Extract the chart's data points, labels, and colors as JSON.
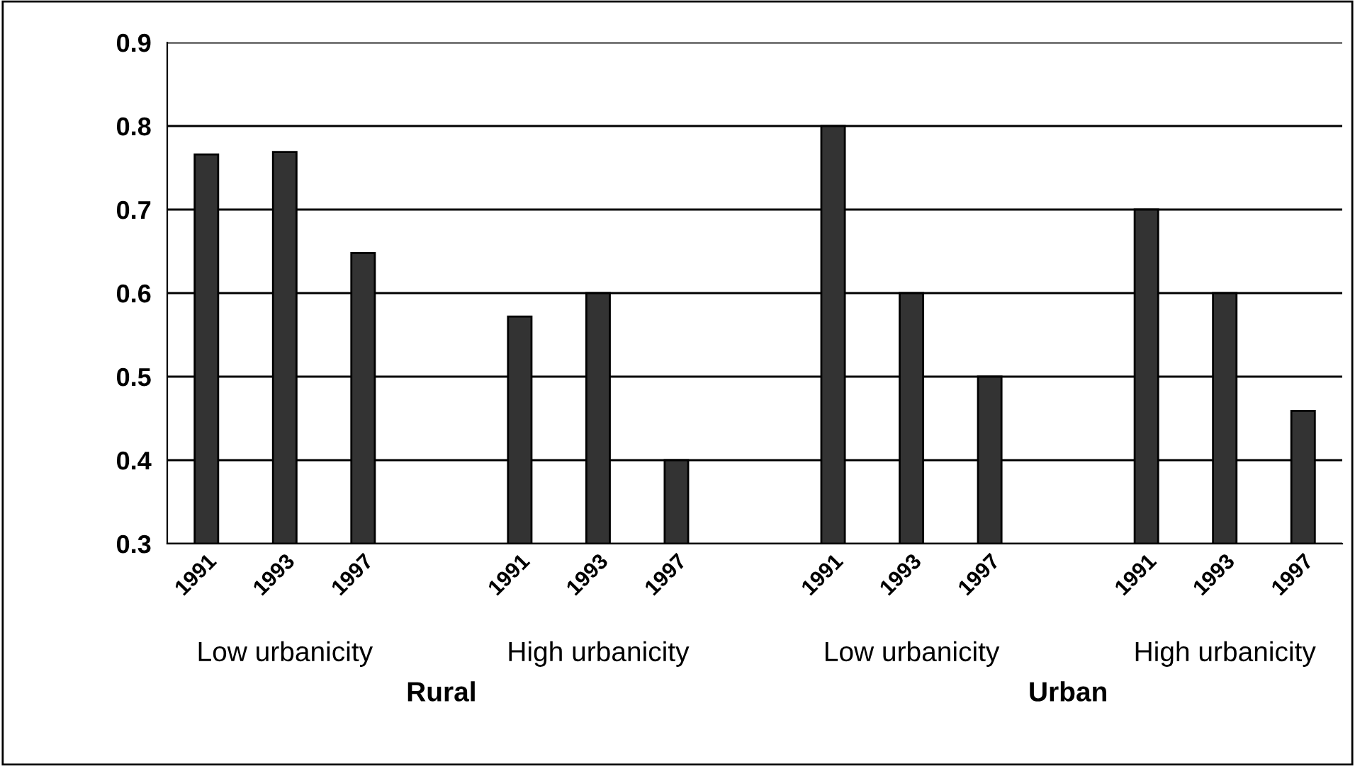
{
  "chart_data": {
    "type": "bar",
    "categories": [
      "1991",
      "1993",
      "1997",
      null,
      "1991",
      "1993",
      "1997",
      null,
      "1991",
      "1993",
      "1997",
      null,
      "1991",
      "1993",
      "1997"
    ],
    "values": [
      0.766,
      0.769,
      0.648,
      null,
      0.572,
      0.6,
      0.4,
      null,
      0.8,
      0.6,
      0.5,
      null,
      0.7,
      0.6,
      0.459
    ],
    "color": "#333333",
    "ylim": [
      0.3,
      0.9
    ],
    "yticks": [
      {
        "value": 0.3,
        "label": "0.3"
      },
      {
        "value": 0.4,
        "label": "0.4"
      },
      {
        "value": 0.5,
        "label": "0.5"
      },
      {
        "value": 0.6,
        "label": "0.6"
      },
      {
        "value": 0.7,
        "label": "0.7"
      },
      {
        "value": 0.8,
        "label": "0.8"
      },
      {
        "value": 0.9,
        "label": "0.9"
      }
    ],
    "grid": "y",
    "annotations": [
      "Low urbanicity",
      "High urbanicity",
      "Low urbanicity",
      "High urbanicity",
      "Rural",
      "Urban"
    ]
  }
}
